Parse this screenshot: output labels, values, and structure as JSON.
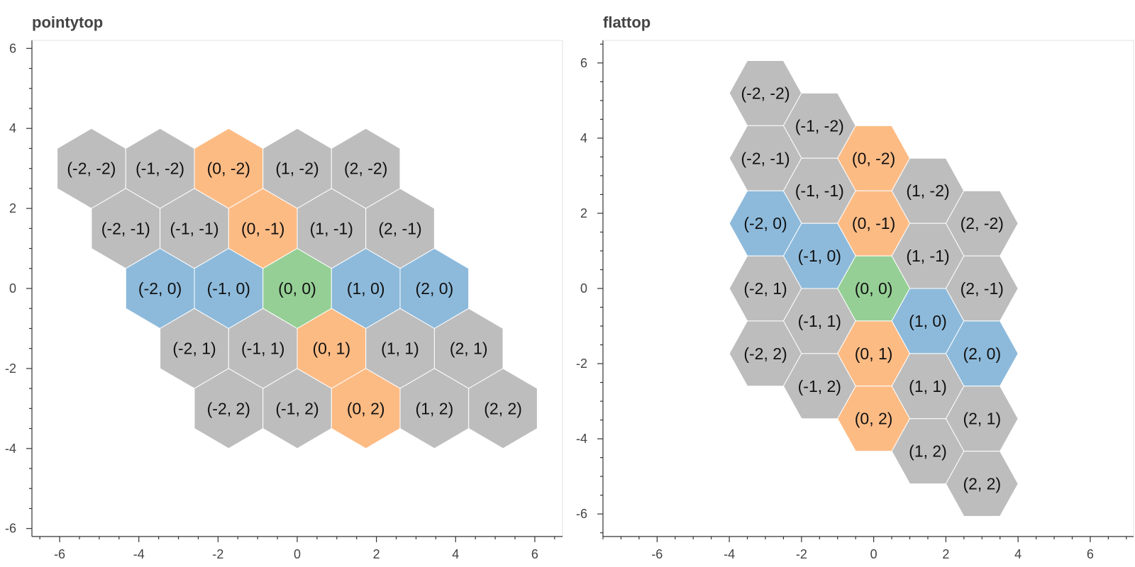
{
  "colors": {
    "gray": "#bdbdbd",
    "orange": "#fdbb84",
    "blue": "#8dbadb",
    "green": "#95cf95",
    "hex_outline": "#ffffff",
    "text": "#111111",
    "axis": "#333333",
    "frame": "#e3e3e3"
  },
  "chart_data": [
    {
      "type": "hex_tile",
      "title": "pointytop",
      "orientation": "pointytop",
      "xlim": [
        -6.7,
        6.7
      ],
      "ylim": [
        -6.2,
        6.2
      ],
      "x_ticks": [
        -6,
        -4,
        -2,
        0,
        2,
        4,
        6
      ],
      "y_ticks": [
        -6,
        -4,
        -2,
        0,
        2,
        4,
        6
      ],
      "x_tick_labels": [
        "-6",
        "-4",
        "-2",
        "0",
        "2",
        "4",
        "6"
      ],
      "y_tick_labels": [
        "-6",
        "-4",
        "-2",
        "0",
        "2",
        "4",
        "6"
      ],
      "tiles": [
        {
          "q": -2,
          "r": -2,
          "label": "(-2, -2)",
          "color": "gray"
        },
        {
          "q": -1,
          "r": -2,
          "label": "(-1, -2)",
          "color": "gray"
        },
        {
          "q": 0,
          "r": -2,
          "label": "(0, -2)",
          "color": "orange"
        },
        {
          "q": 1,
          "r": -2,
          "label": "(1, -2)",
          "color": "gray"
        },
        {
          "q": 2,
          "r": -2,
          "label": "(2, -2)",
          "color": "gray"
        },
        {
          "q": -2,
          "r": -1,
          "label": "(-2, -1)",
          "color": "gray"
        },
        {
          "q": -1,
          "r": -1,
          "label": "(-1, -1)",
          "color": "gray"
        },
        {
          "q": 0,
          "r": -1,
          "label": "(0, -1)",
          "color": "orange"
        },
        {
          "q": 1,
          "r": -1,
          "label": "(1, -1)",
          "color": "gray"
        },
        {
          "q": 2,
          "r": -1,
          "label": "(2, -1)",
          "color": "gray"
        },
        {
          "q": -2,
          "r": 0,
          "label": "(-2, 0)",
          "color": "blue"
        },
        {
          "q": -1,
          "r": 0,
          "label": "(-1, 0)",
          "color": "blue"
        },
        {
          "q": 0,
          "r": 0,
          "label": "(0, 0)",
          "color": "green"
        },
        {
          "q": 1,
          "r": 0,
          "label": "(1, 0)",
          "color": "blue"
        },
        {
          "q": 2,
          "r": 0,
          "label": "(2, 0)",
          "color": "blue"
        },
        {
          "q": -2,
          "r": 1,
          "label": "(-2, 1)",
          "color": "gray"
        },
        {
          "q": -1,
          "r": 1,
          "label": "(-1, 1)",
          "color": "gray"
        },
        {
          "q": 0,
          "r": 1,
          "label": "(0, 1)",
          "color": "orange"
        },
        {
          "q": 1,
          "r": 1,
          "label": "(1, 1)",
          "color": "gray"
        },
        {
          "q": 2,
          "r": 1,
          "label": "(2, 1)",
          "color": "gray"
        },
        {
          "q": -2,
          "r": 2,
          "label": "(-2, 2)",
          "color": "gray"
        },
        {
          "q": -1,
          "r": 2,
          "label": "(-1, 2)",
          "color": "gray"
        },
        {
          "q": 0,
          "r": 2,
          "label": "(0, 2)",
          "color": "orange"
        },
        {
          "q": 1,
          "r": 2,
          "label": "(1, 2)",
          "color": "gray"
        },
        {
          "q": 2,
          "r": 2,
          "label": "(2, 2)",
          "color": "gray"
        }
      ]
    },
    {
      "type": "hex_tile",
      "title": "flattop",
      "orientation": "flattop",
      "xlim": [
        -7.5,
        7.2
      ],
      "ylim": [
        -6.6,
        6.6
      ],
      "x_ticks": [
        -6,
        -4,
        -2,
        0,
        2,
        4,
        6
      ],
      "y_ticks": [
        -6,
        -4,
        -2,
        0,
        2,
        4,
        6
      ],
      "x_tick_labels": [
        "-6",
        "-4",
        "-2",
        "0",
        "2",
        "4",
        "6"
      ],
      "y_tick_labels": [
        "-6",
        "-4",
        "-2",
        "0",
        "2",
        "4",
        "6"
      ],
      "tiles": [
        {
          "q": -2,
          "r": -2,
          "label": "(-2, -2)",
          "color": "gray"
        },
        {
          "q": -1,
          "r": -2,
          "label": "(-1, -2)",
          "color": "gray"
        },
        {
          "q": 0,
          "r": -2,
          "label": "(0, -2)",
          "color": "orange"
        },
        {
          "q": 1,
          "r": -2,
          "label": "(1, -2)",
          "color": "gray"
        },
        {
          "q": 2,
          "r": -2,
          "label": "(2, -2)",
          "color": "gray"
        },
        {
          "q": -2,
          "r": -1,
          "label": "(-2, -1)",
          "color": "gray"
        },
        {
          "q": -1,
          "r": -1,
          "label": "(-1, -1)",
          "color": "gray"
        },
        {
          "q": 0,
          "r": -1,
          "label": "(0, -1)",
          "color": "orange"
        },
        {
          "q": 1,
          "r": -1,
          "label": "(1, -1)",
          "color": "gray"
        },
        {
          "q": 2,
          "r": -1,
          "label": "(2, -1)",
          "color": "gray"
        },
        {
          "q": -2,
          "r": 0,
          "label": "(-2, 0)",
          "color": "blue"
        },
        {
          "q": -1,
          "r": 0,
          "label": "(-1, 0)",
          "color": "blue"
        },
        {
          "q": 0,
          "r": 0,
          "label": "(0, 0)",
          "color": "green"
        },
        {
          "q": 1,
          "r": 0,
          "label": "(1, 0)",
          "color": "blue"
        },
        {
          "q": 2,
          "r": 0,
          "label": "(2, 0)",
          "color": "blue"
        },
        {
          "q": -2,
          "r": 1,
          "label": "(-2, 1)",
          "color": "gray"
        },
        {
          "q": -1,
          "r": 1,
          "label": "(-1, 1)",
          "color": "gray"
        },
        {
          "q": 0,
          "r": 1,
          "label": "(0, 1)",
          "color": "orange"
        },
        {
          "q": 1,
          "r": 1,
          "label": "(1, 1)",
          "color": "gray"
        },
        {
          "q": 2,
          "r": 1,
          "label": "(2, 1)",
          "color": "gray"
        },
        {
          "q": -2,
          "r": 2,
          "label": "(-2, 2)",
          "color": "gray"
        },
        {
          "q": -1,
          "r": 2,
          "label": "(-1, 2)",
          "color": "gray"
        },
        {
          "q": 0,
          "r": 2,
          "label": "(0, 2)",
          "color": "orange"
        },
        {
          "q": 1,
          "r": 2,
          "label": "(1, 2)",
          "color": "gray"
        },
        {
          "q": 2,
          "r": 2,
          "label": "(2, 2)",
          "color": "gray"
        }
      ]
    }
  ]
}
